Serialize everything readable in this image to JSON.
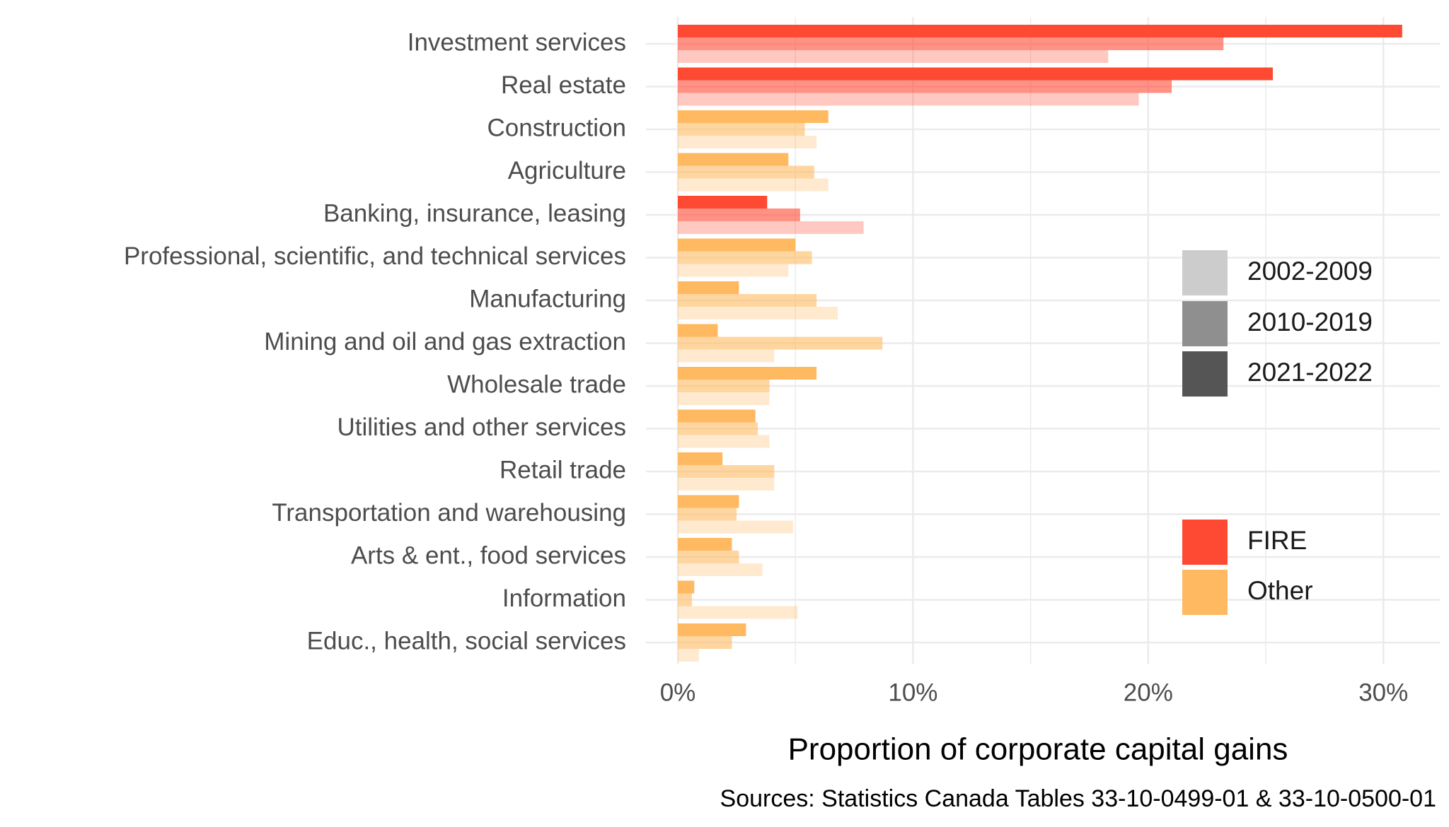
{
  "chart_data": {
    "type": "grouped-hbar",
    "x_label": "Proportion of corporate capital gains",
    "source": "Sources: Statistics Canada Tables 33-10-0499-01 & 33-10-0500-01",
    "categories": [
      "Investment services",
      "Real estate",
      "Construction",
      "Agriculture",
      "Banking, insurance, leasing",
      "Professional, scientific, and technical services",
      "Manufacturing",
      "Mining and oil and gas extraction",
      "Wholesale trade",
      "Utilities and other services",
      "Retail trade",
      "Transportation and warehousing",
      "Arts & ent., food services",
      "Information",
      "Educ., health, social services"
    ],
    "groups": [
      {
        "name": "FIRE",
        "color": "#ff4a33"
      },
      {
        "name": "Other",
        "color": "#ffb961"
      }
    ],
    "category_group": [
      0,
      0,
      1,
      1,
      0,
      1,
      1,
      1,
      1,
      1,
      1,
      1,
      1,
      1,
      1
    ],
    "series": [
      {
        "name": "2021-2022",
        "color": "#555555",
        "opacity": 1.0,
        "values": [
          30.8,
          25.3,
          6.4,
          4.7,
          3.8,
          5.0,
          2.6,
          1.7,
          5.9,
          3.3,
          1.9,
          2.6,
          2.3,
          0.7,
          2.9
        ]
      },
      {
        "name": "2010-2019",
        "color": "#8f8f8f",
        "opacity": 0.6,
        "values": [
          23.2,
          21.0,
          5.4,
          5.8,
          5.2,
          5.7,
          5.9,
          8.7,
          3.9,
          3.4,
          4.1,
          2.5,
          2.6,
          0.6,
          2.3
        ]
      },
      {
        "name": "2002-2009",
        "color": "#cccccc",
        "opacity": 0.3,
        "values": [
          18.3,
          19.6,
          5.9,
          6.4,
          7.9,
          4.7,
          6.8,
          4.1,
          3.9,
          3.9,
          4.1,
          4.9,
          3.6,
          5.1,
          0.9
        ]
      }
    ],
    "xlim": [
      0,
      32.4
    ],
    "xticks": [
      {
        "value": 0,
        "label": "0%"
      },
      {
        "value": 10,
        "label": "10%"
      },
      {
        "value": 20,
        "label": "20%"
      },
      {
        "value": 30,
        "label": "30%"
      }
    ],
    "grid": true,
    "minor_grid": true
  }
}
